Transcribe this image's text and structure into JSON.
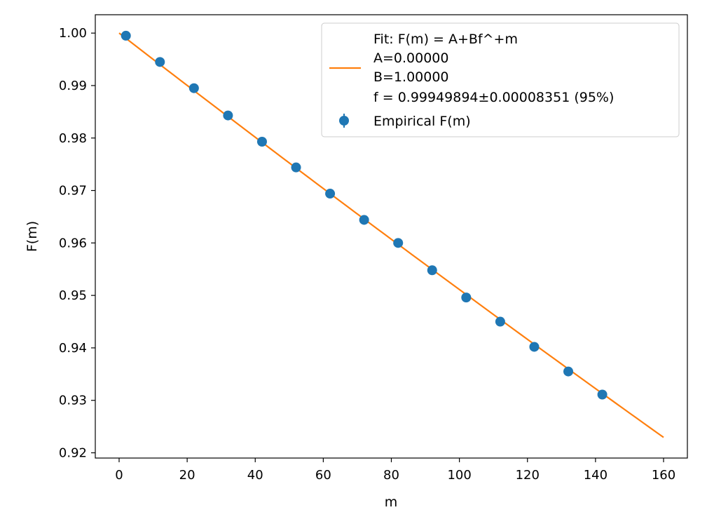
{
  "chart_data": {
    "type": "scatter",
    "title": "",
    "xlabel": "m",
    "ylabel": "F(m)",
    "xlim": [
      -7,
      167
    ],
    "ylim": [
      0.919,
      1.0035
    ],
    "x_ticks": [
      0,
      20,
      40,
      60,
      80,
      100,
      120,
      140,
      160
    ],
    "x_tick_labels": [
      "0",
      "20",
      "40",
      "60",
      "80",
      "100",
      "120",
      "140",
      "160"
    ],
    "y_ticks": [
      0.92,
      0.93,
      0.94,
      0.95,
      0.96,
      0.97,
      0.98,
      0.99,
      1.0
    ],
    "y_tick_labels": [
      "0.92",
      "0.93",
      "0.94",
      "0.95",
      "0.96",
      "0.97",
      "0.98",
      "0.99",
      "1.00"
    ],
    "grid": false,
    "legend_position": "upper-right",
    "series": [
      {
        "name": "Empirical F(m)",
        "kind": "errorbar-points",
        "color": "#1f77b4",
        "x": [
          2,
          12,
          22,
          32,
          42,
          52,
          62,
          72,
          82,
          92,
          102,
          112,
          122,
          132,
          142
        ],
        "y": [
          0.9995,
          0.9945,
          0.9895,
          0.9843,
          0.9793,
          0.9744,
          0.9694,
          0.9644,
          0.96,
          0.9548,
          0.9496,
          0.945,
          0.9402,
          0.9355,
          0.9311
        ]
      },
      {
        "name": "Fit: F(m) = A+Bf^+m",
        "legend_lines": [
          "Fit: F(m) = A+Bf^+m",
          "A=0.00000",
          "B=1.00000",
          "f = 0.99949894±0.00008351 (95%)"
        ],
        "kind": "fit-line",
        "color": "#ff7f0e",
        "A": 0.0,
        "B": 1.0,
        "f": 0.99949894,
        "x_range": [
          0,
          160
        ]
      }
    ]
  }
}
